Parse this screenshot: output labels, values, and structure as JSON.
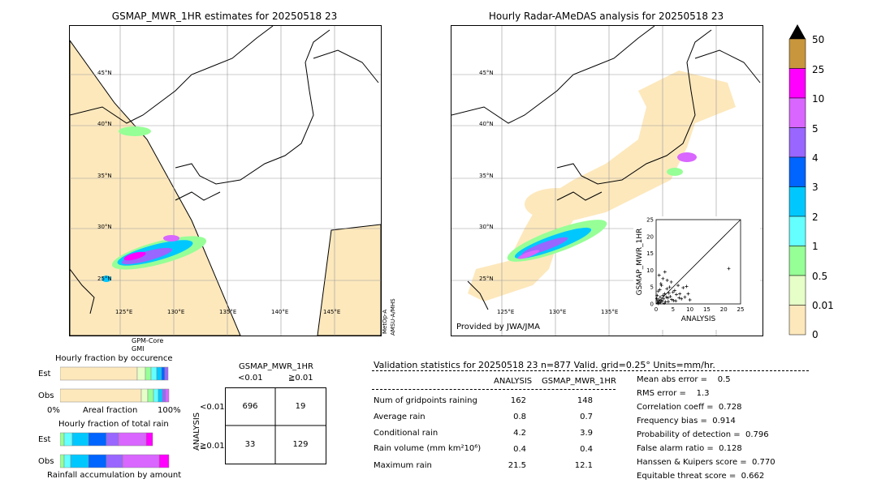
{
  "left_panel": {
    "title": "GSMAP_MWR_1HR estimates for 20250518 23",
    "lat_labels": [
      "45°N",
      "40°N",
      "35°N",
      "30°N",
      "25°N"
    ],
    "lon_labels": [
      "125°E",
      "130°E",
      "135°E",
      "140°E",
      "145°E"
    ],
    "sensor_bottom": "GPM-Core",
    "sensor_bottom2": "GMI",
    "sensor_right": "MetOp-A",
    "sensor_right2": "AMSU-A/MHS"
  },
  "right_panel": {
    "title": "Hourly Radar-AMeDAS analysis for 20250518 23",
    "lat_labels": [
      "45°N",
      "40°N",
      "35°N",
      "30°N",
      "25°N"
    ],
    "lon_labels": [
      "125°E",
      "130°E",
      "135°E"
    ],
    "credit": "Provided by JWA/JMA"
  },
  "colorbar": {
    "labels": [
      "50",
      "25",
      "10",
      "5",
      "4",
      "3",
      "2",
      "1",
      "0.5",
      "0.01",
      "0"
    ],
    "colors": [
      "#c8963c",
      "#ff00ff",
      "#d966ff",
      "#9966ff",
      "#0064ff",
      "#00c8ff",
      "#64ffff",
      "#96ff96",
      "#e6ffc8",
      "#fde8bc"
    ]
  },
  "hourly_fraction_occurrence": {
    "title": "Hourly fraction by occurence",
    "row_labels": [
      "Est",
      "Obs"
    ],
    "axis_left": "0%",
    "axis_mid": "Areal fraction",
    "axis_right": "100%"
  },
  "hourly_fraction_total": {
    "title": "Hourly fraction of total rain",
    "row_labels": [
      "Est",
      "Obs"
    ],
    "axis_label": "Rainfall accumulation by amount"
  },
  "contingency": {
    "title": "GSMAP_MWR_1HR",
    "col_labels": [
      "<0.01",
      "≧0.01"
    ],
    "row_axis": "ANALYSIS",
    "row_labels": [
      "<0.01",
      "≧0.01"
    ],
    "cells": [
      "696",
      "19",
      "33",
      "129"
    ]
  },
  "validation": {
    "header": "Validation statistics for 20250518 23  n=877 Valid. grid=0.25° Units=mm/hr.",
    "col_analysis": "ANALYSIS",
    "col_gsmap": "GSMAP_MWR_1HR",
    "rows": [
      {
        "label": "Num of gridpoints raining",
        "a": "162",
        "g": "148"
      },
      {
        "label": "Average rain",
        "a": "0.8",
        "g": "0.7"
      },
      {
        "label": "Conditional rain",
        "a": "4.2",
        "g": "3.9"
      },
      {
        "label": "Rain volume (mm km²10⁶)",
        "a": "0.4",
        "g": "0.4"
      },
      {
        "label": "Maximum rain",
        "a": "21.5",
        "g": "12.1"
      }
    ],
    "scores": [
      "Mean abs error =    0.5",
      "RMS error =    1.3",
      "Correlation coeff =  0.728",
      "Frequency bias =  0.914",
      "Probability of detection =  0.796",
      "False alarm ratio =  0.128",
      "Hanssen & Kuipers score =  0.770",
      "Equitable threat score =  0.662"
    ]
  },
  "chart_data": {
    "type": "scatter",
    "xlabel": "ANALYSIS",
    "ylabel": "GSMAP_MWR_1HR",
    "xlim": [
      0,
      25
    ],
    "ylim": [
      0,
      25
    ],
    "ticks": [
      "0",
      "5",
      "10",
      "15",
      "20",
      "25"
    ],
    "points": [
      [
        0.5,
        0.3
      ],
      [
        0.8,
        1.2
      ],
      [
        1.0,
        0.5
      ],
      [
        1.2,
        2.0
      ],
      [
        1.5,
        1.0
      ],
      [
        1.8,
        0.8
      ],
      [
        2.0,
        2.5
      ],
      [
        2.2,
        1.5
      ],
      [
        2.5,
        3.0
      ],
      [
        2.8,
        0.6
      ],
      [
        3.0,
        2.0
      ],
      [
        3.2,
        4.5
      ],
      [
        3.5,
        1.8
      ],
      [
        3.8,
        3.2
      ],
      [
        4.0,
        5.0
      ],
      [
        4.2,
        2.2
      ],
      [
        4.5,
        6.5
      ],
      [
        5.0,
        3.5
      ],
      [
        5.2,
        1.0
      ],
      [
        5.5,
        4.0
      ],
      [
        6.0,
        2.8
      ],
      [
        6.5,
        5.5
      ],
      [
        7.0,
        3.0
      ],
      [
        7.5,
        1.5
      ],
      [
        8.0,
        4.8
      ],
      [
        8.5,
        2.0
      ],
      [
        9.0,
        5.2
      ],
      [
        9.5,
        3.0
      ],
      [
        10.0,
        1.2
      ],
      [
        0.3,
        2.5
      ],
      [
        0.6,
        3.8
      ],
      [
        1.1,
        4.2
      ],
      [
        1.4,
        6.0
      ],
      [
        2.0,
        7.5
      ],
      [
        0.9,
        8.5
      ],
      [
        2.6,
        9.5
      ],
      [
        1.6,
        5.5
      ],
      [
        3.3,
        7.0
      ],
      [
        21.5,
        10.5
      ],
      [
        0.4,
        0.9
      ],
      [
        1.3,
        0.4
      ],
      [
        2.4,
        0.2
      ],
      [
        3.6,
        0.7
      ],
      [
        4.6,
        1.3
      ],
      [
        5.8,
        0.9
      ],
      [
        6.8,
        1.8
      ],
      [
        0.2,
        1.6
      ],
      [
        0.7,
        0.1
      ]
    ]
  }
}
